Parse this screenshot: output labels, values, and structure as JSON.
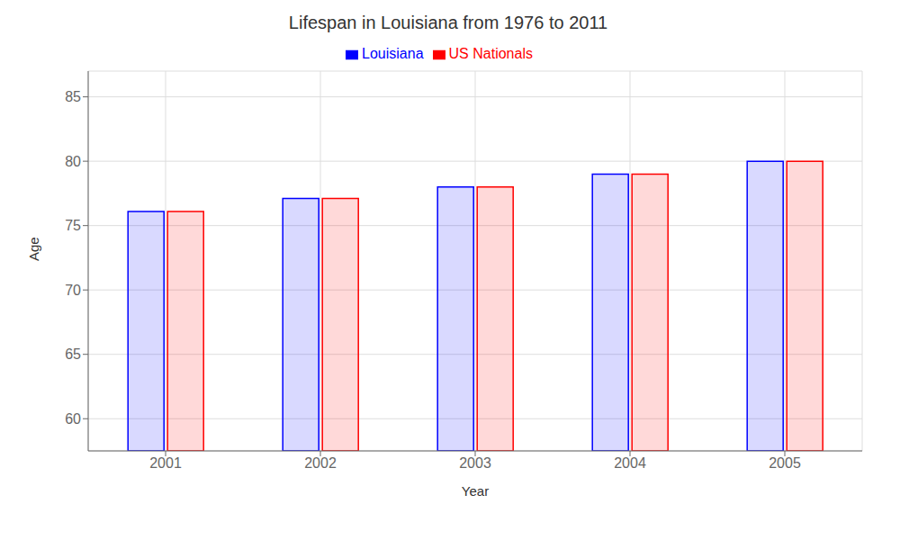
{
  "chart_data": {
    "type": "bar",
    "title": "Lifespan in Louisiana from 1976 to 2011",
    "x_label": "Year",
    "y_label": "Age",
    "categories": [
      "2001",
      "2002",
      "2003",
      "2004",
      "2005"
    ],
    "series": [
      {
        "name": "Louisiana",
        "color": "#0000ff",
        "values": [
          76.1,
          77.1,
          78.0,
          79.0,
          80.0
        ]
      },
      {
        "name": "US Nationals",
        "color": "#ff0000",
        "values": [
          76.1,
          77.1,
          78.0,
          79.0,
          80.0
        ]
      }
    ],
    "ylim": [
      57.5,
      87
    ],
    "yticks": [
      60,
      65,
      70,
      75,
      80,
      85
    ],
    "grid": true,
    "legend": "top"
  }
}
